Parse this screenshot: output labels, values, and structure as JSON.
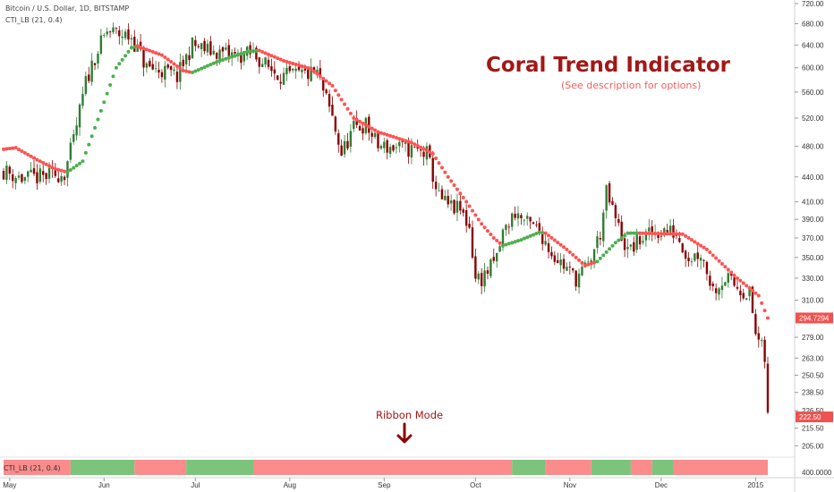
{
  "header": {
    "symbol_line": "Bitcoin / U.S. Dollar, 1D, BITSTAMP",
    "indicator_line": "CTI_LB (21, 0.4)"
  },
  "annotations": {
    "title": "Coral Trend Indicator",
    "subtitle": "(See description for options)",
    "ribbon_label": "Ribbon Mode",
    "ribbon_indicator_name": "CTI_LB (21, 0.4)"
  },
  "colors": {
    "up": "#26a69a",
    "down": "#ef5350",
    "candle_down": "#8b0000",
    "candle_up": "#2e7d32",
    "coral_up": "#4caf50",
    "coral_down": "#ff5252",
    "ribbon_up": "#7cc47c",
    "ribbon_down": "#fb8c8c",
    "title": "#a31717"
  },
  "chart_data": {
    "type": "candlestick",
    "y_scale": "log",
    "ylim": [
      200,
      720
    ],
    "y_ticks": [
      720.0,
      680.0,
      640.0,
      600.0,
      560.0,
      520.0,
      480.0,
      440.0,
      410.0,
      390.0,
      370.0,
      350.0,
      330.0,
      310.0,
      279.0,
      263.0,
      250.5,
      238.5,
      226.5,
      215.5,
      205.0
    ],
    "y_tick_labels": [
      "720.00",
      "680.00",
      "640.00",
      "600.00",
      "560.00",
      "520.00",
      "480.00",
      "440.00",
      "410.00",
      "390.00",
      "370.00",
      "350.00",
      "330.00",
      "310.00",
      "279.00",
      "263.00",
      "250.50",
      "238.50",
      "226.50",
      "215.50",
      "205.00"
    ],
    "pane2_label": "400.0000",
    "x_labels": [
      "May",
      "Jun",
      "Jul",
      "Aug",
      "Sep",
      "Oct",
      "Nov",
      "Dec",
      "2015"
    ],
    "x_start": "2014-04-29",
    "x_end": "2015-01-05",
    "month_starts": [
      "2014-05-01",
      "2014-06-01",
      "2014-07-01",
      "2014-08-01",
      "2014-09-01",
      "2014-10-01",
      "2014-11-01",
      "2014-12-01",
      "2015-01-01"
    ],
    "price_badges": [
      {
        "label": "294.7294",
        "value": 294.7294,
        "color": "#ef5350"
      },
      {
        "label": "222.50",
        "value": 222.5,
        "color": "#ef5350"
      }
    ],
    "close_series": [
      {
        "date": "2014-04-29",
        "close": 448
      },
      {
        "date": "2014-05-05",
        "close": 438
      },
      {
        "date": "2014-05-12",
        "close": 440
      },
      {
        "date": "2014-05-19",
        "close": 445
      },
      {
        "date": "2014-05-22",
        "close": 488
      },
      {
        "date": "2014-05-26",
        "close": 575
      },
      {
        "date": "2014-05-29",
        "close": 620
      },
      {
        "date": "2014-06-02",
        "close": 665
      },
      {
        "date": "2014-06-06",
        "close": 660
      },
      {
        "date": "2014-06-10",
        "close": 655
      },
      {
        "date": "2014-06-15",
        "close": 600
      },
      {
        "date": "2014-06-20",
        "close": 595
      },
      {
        "date": "2014-06-25",
        "close": 585
      },
      {
        "date": "2014-06-30",
        "close": 640
      },
      {
        "date": "2014-07-05",
        "close": 630
      },
      {
        "date": "2014-07-10",
        "close": 625
      },
      {
        "date": "2014-07-15",
        "close": 620
      },
      {
        "date": "2014-07-20",
        "close": 625
      },
      {
        "date": "2014-07-25",
        "close": 600
      },
      {
        "date": "2014-07-30",
        "close": 585
      },
      {
        "date": "2014-08-05",
        "close": 588
      },
      {
        "date": "2014-08-10",
        "close": 590
      },
      {
        "date": "2014-08-15",
        "close": 520
      },
      {
        "date": "2014-08-18",
        "close": 470
      },
      {
        "date": "2014-08-22",
        "close": 505
      },
      {
        "date": "2014-08-26",
        "close": 510
      },
      {
        "date": "2014-08-30",
        "close": 480
      },
      {
        "date": "2014-09-05",
        "close": 478
      },
      {
        "date": "2014-09-10",
        "close": 475
      },
      {
        "date": "2014-09-15",
        "close": 470
      },
      {
        "date": "2014-09-19",
        "close": 415
      },
      {
        "date": "2014-09-22",
        "close": 405
      },
      {
        "date": "2014-09-26",
        "close": 400
      },
      {
        "date": "2014-09-29",
        "close": 382
      },
      {
        "date": "2014-10-01",
        "close": 330
      },
      {
        "date": "2014-10-03",
        "close": 330
      },
      {
        "date": "2014-10-06",
        "close": 340
      },
      {
        "date": "2014-10-08",
        "close": 350
      },
      {
        "date": "2014-10-10",
        "close": 375
      },
      {
        "date": "2014-10-14",
        "close": 398
      },
      {
        "date": "2014-10-18",
        "close": 385
      },
      {
        "date": "2014-10-22",
        "close": 378
      },
      {
        "date": "2014-10-26",
        "close": 355
      },
      {
        "date": "2014-10-30",
        "close": 342
      },
      {
        "date": "2014-11-03",
        "close": 330
      },
      {
        "date": "2014-11-07",
        "close": 342
      },
      {
        "date": "2014-11-11",
        "close": 375
      },
      {
        "date": "2014-11-13",
        "close": 420
      },
      {
        "date": "2014-11-16",
        "close": 390
      },
      {
        "date": "2014-11-20",
        "close": 355
      },
      {
        "date": "2014-11-24",
        "close": 368
      },
      {
        "date": "2014-11-28",
        "close": 375
      },
      {
        "date": "2014-12-02",
        "close": 378
      },
      {
        "date": "2014-12-06",
        "close": 375
      },
      {
        "date": "2014-12-10",
        "close": 350
      },
      {
        "date": "2014-12-14",
        "close": 355
      },
      {
        "date": "2014-12-18",
        "close": 320
      },
      {
        "date": "2014-12-22",
        "close": 330
      },
      {
        "date": "2014-12-26",
        "close": 322
      },
      {
        "date": "2014-12-30",
        "close": 315
      },
      {
        "date": "2015-01-01",
        "close": 282
      },
      {
        "date": "2015-01-03",
        "close": 270
      },
      {
        "date": "2015-01-04",
        "close": 262
      },
      {
        "date": "2015-01-05",
        "close": 222.5
      }
    ],
    "coral_trend": [
      {
        "date": "2014-04-29",
        "value": 476,
        "trend": "down"
      },
      {
        "date": "2014-05-03",
        "value": 478,
        "trend": "down"
      },
      {
        "date": "2014-05-10",
        "value": 462,
        "trend": "down"
      },
      {
        "date": "2014-05-16",
        "value": 450,
        "trend": "down"
      },
      {
        "date": "2014-05-20",
        "value": 446,
        "trend": "up"
      },
      {
        "date": "2014-05-25",
        "value": 460,
        "trend": "up"
      },
      {
        "date": "2014-05-30",
        "value": 518,
        "trend": "up"
      },
      {
        "date": "2014-06-05",
        "value": 600,
        "trend": "up"
      },
      {
        "date": "2014-06-10",
        "value": 635,
        "trend": "up"
      },
      {
        "date": "2014-06-12",
        "value": 638,
        "trend": "down"
      },
      {
        "date": "2014-06-20",
        "value": 622,
        "trend": "down"
      },
      {
        "date": "2014-06-27",
        "value": 595,
        "trend": "down"
      },
      {
        "date": "2014-06-30",
        "value": 592,
        "trend": "up"
      },
      {
        "date": "2014-07-08",
        "value": 610,
        "trend": "up"
      },
      {
        "date": "2014-07-18",
        "value": 628,
        "trend": "up"
      },
      {
        "date": "2014-07-22",
        "value": 630,
        "trend": "down"
      },
      {
        "date": "2014-07-30",
        "value": 612,
        "trend": "down"
      },
      {
        "date": "2014-08-08",
        "value": 598,
        "trend": "down"
      },
      {
        "date": "2014-08-15",
        "value": 570,
        "trend": "down"
      },
      {
        "date": "2014-08-22",
        "value": 520,
        "trend": "down"
      },
      {
        "date": "2014-08-30",
        "value": 500,
        "trend": "down"
      },
      {
        "date": "2014-09-10",
        "value": 485,
        "trend": "down"
      },
      {
        "date": "2014-09-17",
        "value": 470,
        "trend": "down"
      },
      {
        "date": "2014-09-22",
        "value": 440,
        "trend": "down"
      },
      {
        "date": "2014-09-28",
        "value": 410,
        "trend": "down"
      },
      {
        "date": "2014-10-03",
        "value": 385,
        "trend": "down"
      },
      {
        "date": "2014-10-07",
        "value": 370,
        "trend": "down"
      },
      {
        "date": "2014-10-10",
        "value": 362,
        "trend": "up"
      },
      {
        "date": "2014-10-16",
        "value": 368,
        "trend": "up"
      },
      {
        "date": "2014-10-22",
        "value": 376,
        "trend": "up"
      },
      {
        "date": "2014-10-24",
        "value": 375,
        "trend": "down"
      },
      {
        "date": "2014-10-31",
        "value": 358,
        "trend": "down"
      },
      {
        "date": "2014-11-06",
        "value": 342,
        "trend": "down"
      },
      {
        "date": "2014-11-10",
        "value": 346,
        "trend": "up"
      },
      {
        "date": "2014-11-16",
        "value": 365,
        "trend": "up"
      },
      {
        "date": "2014-11-20",
        "value": 375,
        "trend": "up"
      },
      {
        "date": "2014-11-24",
        "value": 375,
        "trend": "down"
      },
      {
        "date": "2014-12-08",
        "value": 374,
        "trend": "down"
      },
      {
        "date": "2014-12-16",
        "value": 358,
        "trend": "down"
      },
      {
        "date": "2014-12-26",
        "value": 330,
        "trend": "down"
      },
      {
        "date": "2015-01-02",
        "value": 314,
        "trend": "down"
      },
      {
        "date": "2015-01-05",
        "value": 294.73,
        "trend": "down"
      }
    ],
    "ribbon": [
      {
        "start": "2014-04-29",
        "end": "2014-05-21",
        "trend": "down"
      },
      {
        "start": "2014-05-21",
        "end": "2014-06-11",
        "trend": "up"
      },
      {
        "start": "2014-06-11",
        "end": "2014-06-28",
        "trend": "down"
      },
      {
        "start": "2014-06-28",
        "end": "2014-07-20",
        "trend": "up"
      },
      {
        "start": "2014-07-20",
        "end": "2014-10-13",
        "trend": "down"
      },
      {
        "start": "2014-10-13",
        "end": "2014-10-24",
        "trend": "up"
      },
      {
        "start": "2014-10-24",
        "end": "2014-11-08",
        "trend": "down"
      },
      {
        "start": "2014-11-08",
        "end": "2014-11-21",
        "trend": "up"
      },
      {
        "start": "2014-11-21",
        "end": "2014-11-28",
        "trend": "down"
      },
      {
        "start": "2014-11-28",
        "end": "2014-12-05",
        "trend": "up"
      },
      {
        "start": "2014-12-05",
        "end": "2015-01-05",
        "trend": "down"
      }
    ]
  }
}
